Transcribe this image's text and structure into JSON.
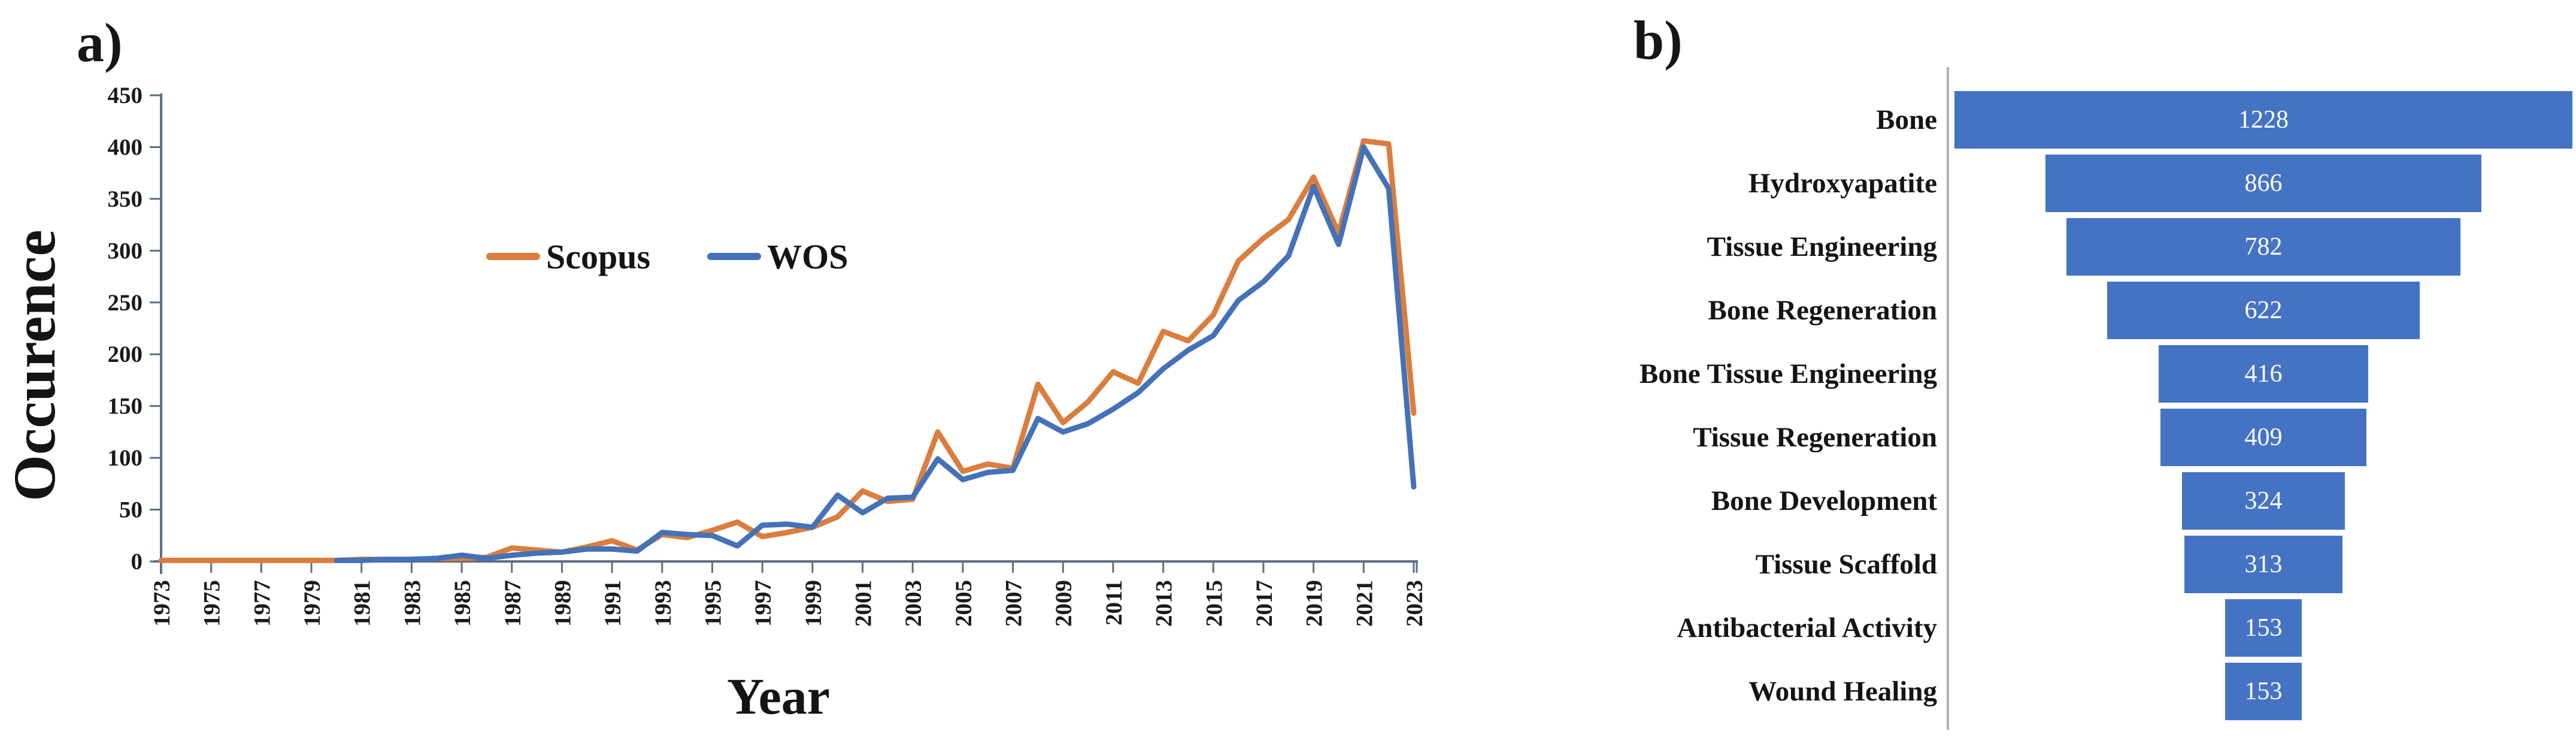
{
  "figure": {
    "panel_a_tag": "a)",
    "panel_b_tag": "b)"
  },
  "colors": {
    "scopus_line": "#D97E3E",
    "wos_line": "#4472B8",
    "funnel_bar": "#4573C4",
    "axis_line": "#5D6F83",
    "funnel_axis_line": "#ABB6C2",
    "tick_text": "#1A1A1A",
    "bar_value_text": "#FFFFFF"
  },
  "chart_data": [
    {
      "id": "occurrence-by-year",
      "type": "line",
      "title": "",
      "xlabel": "Year",
      "ylabel": "Occurence",
      "ylim": [
        0,
        450
      ],
      "ytick_step": 50,
      "yticks": [
        0,
        50,
        100,
        150,
        200,
        250,
        300,
        350,
        400,
        450
      ],
      "grid": false,
      "legend_position": "inside-top",
      "x": [
        1973,
        1974,
        1975,
        1976,
        1977,
        1978,
        1979,
        1980,
        1981,
        1982,
        1983,
        1984,
        1985,
        1986,
        1987,
        1988,
        1989,
        1990,
        1991,
        1992,
        1993,
        1994,
        1995,
        1996,
        1997,
        1998,
        1999,
        2000,
        2001,
        2002,
        2003,
        2004,
        2005,
        2006,
        2007,
        2008,
        2009,
        2010,
        2011,
        2012,
        2013,
        2014,
        2015,
        2016,
        2017,
        2018,
        2019,
        2020,
        2021,
        2022,
        2023
      ],
      "xtick_labels": [
        "1973",
        "1975",
        "1977",
        "1979",
        "1981",
        "1983",
        "1985",
        "1987",
        "1989",
        "1991",
        "1993",
        "1995",
        "1997",
        "1999",
        "2001",
        "2003",
        "2005",
        "2007",
        "2009",
        "2011",
        "2013",
        "2015",
        "2017",
        "2019",
        "2021",
        "2023"
      ],
      "series": [
        {
          "name": "Scopus",
          "color": "#D97E3E",
          "values": [
            1,
            1,
            1,
            1,
            1,
            1,
            1,
            1,
            2,
            2,
            2,
            3,
            3,
            4,
            13,
            11,
            9,
            14,
            20,
            11,
            26,
            23,
            30,
            38,
            24,
            28,
            33,
            43,
            68,
            58,
            60,
            125,
            87,
            94,
            90,
            171,
            134,
            154,
            183,
            172,
            222,
            213,
            238,
            290,
            312,
            330,
            371,
            317,
            406,
            403,
            143
          ]
        },
        {
          "name": "WOS",
          "color": "#4472B8",
          "values": [
            null,
            null,
            null,
            null,
            null,
            null,
            null,
            1,
            1,
            2,
            2,
            3,
            6,
            3,
            6,
            8,
            9,
            12,
            12,
            10,
            28,
            26,
            25,
            15,
            35,
            36,
            33,
            64,
            47,
            61,
            62,
            99,
            79,
            86,
            88,
            138,
            125,
            133,
            147,
            163,
            186,
            204,
            218,
            252,
            270,
            295,
            362,
            306,
            400,
            360,
            72
          ]
        }
      ]
    },
    {
      "id": "keyword-occurrence-funnel",
      "type": "funnel",
      "title": "",
      "categories": [
        "Bone",
        "Hydroxyapatite",
        "Tissue Engineering",
        "Bone Regeneration",
        "Bone Tissue Engineering",
        "Tissue Regeneration",
        "Bone Development",
        "Tissue Scaffold",
        "Antibacterial Activity",
        "Wound Healing"
      ],
      "values": [
        1228,
        866,
        782,
        622,
        416,
        409,
        324,
        313,
        153,
        153
      ],
      "max_value": 1228,
      "bar_color": "#4573C4"
    }
  ]
}
